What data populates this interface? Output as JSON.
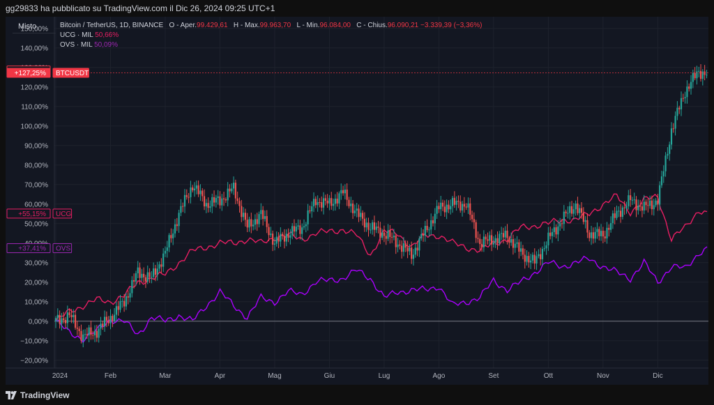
{
  "header": {
    "text": "gg29833 ha pubblicato su TradingView.com il Dic 26, 2024 09:25 UTC+1"
  },
  "scale_mode": "Misto",
  "legend": {
    "main": {
      "symbol": "Bitcoin / TetherUS, 1D, BINANCE",
      "open_label": "O - Aper.",
      "open": "99.429,61",
      "high_label": "H - Max.",
      "high": "99.963,70",
      "low_label": "L - Min.",
      "low": "96.084,00",
      "close_label": "C - Chius.",
      "close": "96.090,21",
      "change": "−3.339,39 (−3,36%)"
    },
    "ucg": {
      "label": "UCG · MIL",
      "value": "50,66%"
    },
    "ovs": {
      "label": "OVS · MIL",
      "value": "50,09%"
    }
  },
  "footer": {
    "brand": "TradingView"
  },
  "colors": {
    "up": "#26a69a",
    "down": "#ef5350",
    "ucg": "#e91e63",
    "ovs": "#aa00ff",
    "btc_label": "#f23645"
  },
  "chart_data": {
    "type": "line",
    "x_tick_labels": [
      "2024",
      "Feb",
      "Mar",
      "Apr",
      "Mag",
      "Giu",
      "Lug",
      "Ago",
      "Set",
      "Ott",
      "Nov",
      "Dic"
    ],
    "y_tick_labels": [
      "150,00%",
      "140,00%",
      "130,00%",
      "120,00%",
      "110,00%",
      "100,00%",
      "90,00%",
      "80,00%",
      "70,00%",
      "60,00%",
      "50,00%",
      "40,00%",
      "30,00%",
      "20,00%",
      "10,00%",
      "0,00%",
      "−10,00%",
      "−20,00%"
    ],
    "ylim": [
      -24,
      156
    ],
    "x_range_months": [
      0,
      11.9
    ],
    "price_labels": [
      {
        "text": "+128,44%",
        "value": 128.44,
        "style": "outline",
        "color": "#f23645"
      },
      {
        "text": "+127,25%",
        "value": 127.25,
        "style": "filled",
        "color": "#f23645",
        "tag": "BTCUSDT"
      },
      {
        "text": "+55,15%",
        "value": 55.15,
        "style": "outline",
        "color": "#e91e63",
        "tag": "UCG"
      },
      {
        "text": "+37,41%",
        "value": 37.41,
        "style": "outline",
        "color": "#9c27b0",
        "tag": "OVS"
      }
    ],
    "series": [
      {
        "name": "BTCUSDT",
        "kind": "candlestick",
        "x": [
          0,
          0.25,
          0.5,
          0.75,
          1,
          1.25,
          1.5,
          1.75,
          2,
          2.25,
          2.5,
          2.75,
          3,
          3.25,
          3.5,
          3.75,
          4,
          4.25,
          4.5,
          4.75,
          5,
          5.25,
          5.5,
          5.75,
          6,
          6.25,
          6.5,
          6.75,
          7,
          7.25,
          7.5,
          7.75,
          8,
          8.25,
          8.5,
          8.75,
          9,
          9.25,
          9.5,
          9.75,
          10,
          10.25,
          10.5,
          10.75,
          11,
          11.25,
          11.5,
          11.75,
          11.9
        ],
        "y": [
          0,
          3,
          -8,
          -5,
          2,
          10,
          25,
          22,
          35,
          55,
          70,
          60,
          62,
          68,
          48,
          55,
          40,
          45,
          48,
          62,
          60,
          66,
          55,
          48,
          45,
          40,
          34,
          46,
          58,
          60,
          60,
          40,
          42,
          44,
          35,
          30,
          42,
          52,
          60,
          45,
          44,
          55,
          62,
          58,
          62,
          98,
          118,
          128,
          127
        ]
      },
      {
        "name": "UCG",
        "kind": "line",
        "x": [
          0,
          0.25,
          0.5,
          0.75,
          1,
          1.25,
          1.5,
          1.75,
          2,
          2.25,
          2.5,
          2.75,
          3,
          3.25,
          3.5,
          3.75,
          4,
          4.25,
          4.5,
          4.75,
          5,
          5.25,
          5.5,
          5.75,
          6,
          6.25,
          6.5,
          6.75,
          7,
          7.25,
          7.5,
          7.75,
          8,
          8.25,
          8.5,
          8.75,
          9,
          9.25,
          9.5,
          9.75,
          10,
          10.25,
          10.5,
          10.75,
          11,
          11.25,
          11.5,
          11.75,
          11.9
        ],
        "y": [
          0,
          5,
          8,
          11,
          10,
          13,
          20,
          22,
          24,
          30,
          36,
          38,
          40,
          40,
          42,
          40,
          43,
          44,
          42,
          45,
          46,
          47,
          44,
          34,
          46,
          45,
          38,
          44,
          44,
          40,
          38,
          36,
          40,
          42,
          48,
          49,
          50,
          52,
          52,
          55,
          60,
          64,
          56,
          62,
          64,
          42,
          48,
          57,
          55
        ]
      },
      {
        "name": "OVS",
        "kind": "line",
        "x": [
          0,
          0.25,
          0.5,
          0.75,
          1,
          1.25,
          1.5,
          1.75,
          2,
          2.25,
          2.5,
          2.75,
          3,
          3.25,
          3.5,
          3.75,
          4,
          4.25,
          4.5,
          4.75,
          5,
          5.25,
          5.5,
          5.75,
          6,
          6.25,
          6.5,
          6.75,
          7,
          7.25,
          7.5,
          7.75,
          8,
          8.25,
          8.5,
          8.75,
          9,
          9.25,
          9.5,
          9.75,
          10,
          10.25,
          10.5,
          10.75,
          11,
          11.25,
          11.5,
          11.75,
          11.9
        ],
        "y": [
          0,
          -6,
          -9,
          -5,
          1,
          0,
          -7,
          2,
          0,
          3,
          0,
          8,
          15,
          8,
          2,
          12,
          10,
          15,
          14,
          20,
          21,
          22,
          26,
          22,
          12,
          15,
          16,
          16,
          18,
          8,
          10,
          12,
          21,
          16,
          20,
          25,
          30,
          28,
          30,
          32,
          28,
          25,
          22,
          30,
          20,
          28,
          27,
          35,
          37
        ]
      }
    ]
  }
}
